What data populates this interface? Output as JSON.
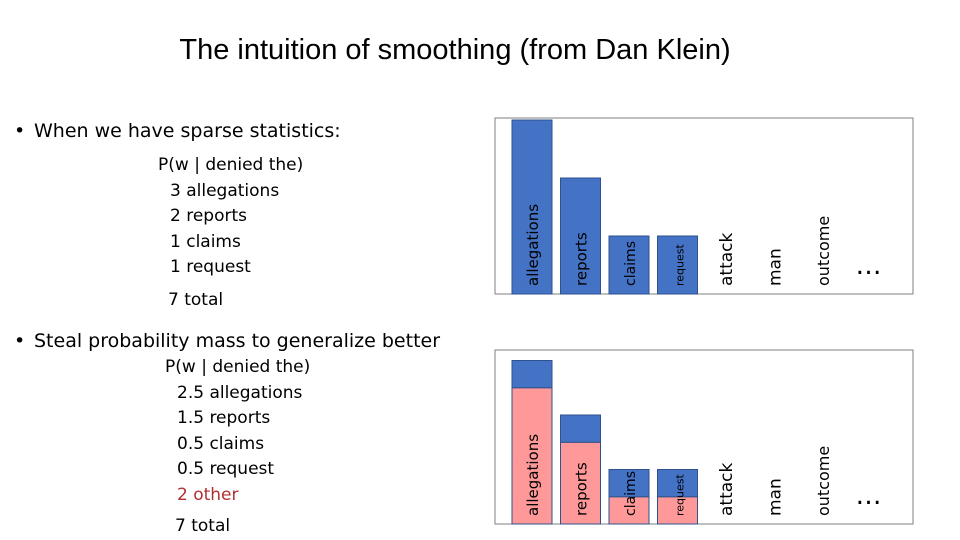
{
  "title": "The intuition of smoothing (from Dan Klein)",
  "bullet1": "When we have sparse statistics:",
  "bullet2": "Steal probability mass to generalize better",
  "sparse": {
    "heading": "P(w | denied the)",
    "lines": [
      "3 allegations",
      "2 reports",
      "1 claims",
      "1 request"
    ],
    "total": "7 total"
  },
  "smoothed": {
    "heading": "P(w | denied the)",
    "lines": [
      "2.5 allegations",
      "1.5 reports",
      "0.5 claims",
      "0.5 request"
    ],
    "other": "2 other",
    "total": "7 total"
  },
  "ellipsis": "…",
  "colors": {
    "observed": "#4472C4",
    "smoothed": "#FF9999",
    "other_text": "#B03030",
    "frame": "#7F7F7F"
  },
  "chart_data": [
    {
      "type": "bar",
      "categories": [
        "allegations",
        "reports",
        "claims",
        "request",
        "attack",
        "man",
        "outcome"
      ],
      "series": [
        {
          "values": [
            3,
            2,
            1,
            1,
            0,
            0,
            0
          ]
        }
      ],
      "ylim": [
        0,
        3
      ]
    },
    {
      "type": "bar",
      "categories": [
        "allegations",
        "reports",
        "claims",
        "request",
        "attack",
        "man",
        "outcome"
      ],
      "series": [
        {
          "values": [
            2.5,
            1.5,
            0.5,
            0.5,
            0,
            0,
            0
          ]
        },
        {
          "values": [
            0.5,
            0.5,
            0.5,
            0.5,
            0,
            0,
            0
          ]
        }
      ],
      "ylim": [
        0,
        3
      ]
    }
  ]
}
